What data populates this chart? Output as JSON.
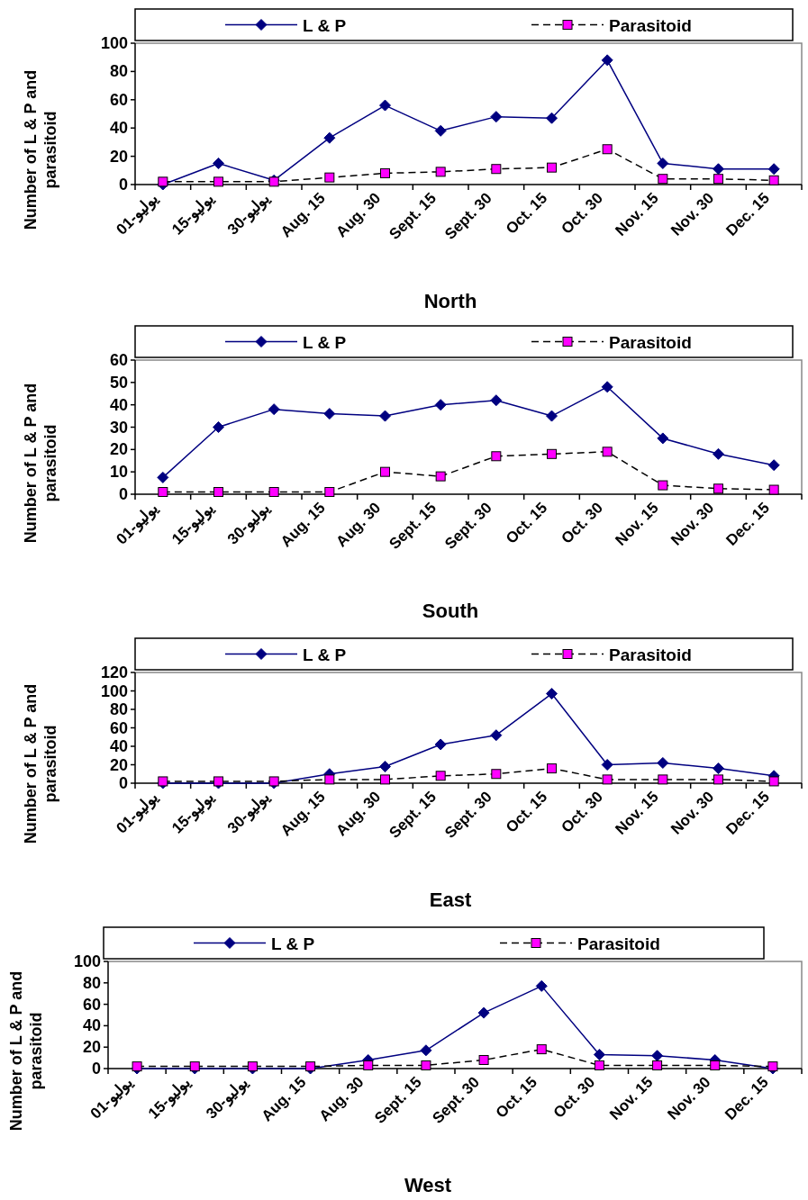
{
  "chart_data": [
    {
      "type": "line",
      "xlabel": "North",
      "ylabel": "Number of L & P and parasitoid",
      "legend": "top",
      "categories": [
        "01-يوليو",
        "15-يوليو",
        "30-يوليو",
        "Aug. 15",
        "Aug. 30",
        "Sept. 15",
        "Sept. 30",
        "Oct. 15",
        "Oct. 30",
        "Nov. 15",
        "Nov. 30",
        "Dec. 15"
      ],
      "ylim": [
        0,
        100
      ],
      "yticks": [
        0,
        20,
        40,
        60,
        80,
        100
      ],
      "series": [
        {
          "name": "L & P",
          "color": "#000080",
          "marker": "diamond",
          "line_style": "solid",
          "values": [
            0,
            15,
            3,
            33,
            56,
            38,
            48,
            47,
            88,
            15,
            11,
            11
          ]
        },
        {
          "name": "Parasitoid",
          "color": "#ff00ff",
          "marker": "square",
          "line_style": "dashed",
          "values": [
            2,
            2,
            2,
            5,
            8,
            9,
            11,
            12,
            25,
            4,
            4,
            3
          ]
        }
      ]
    },
    {
      "type": "line",
      "xlabel": "South",
      "ylabel": "Number of L & P and parasitoid",
      "legend": "top",
      "categories": [
        "01-يوليو",
        "15-يوليو",
        "30-يوليو",
        "Aug. 15",
        "Aug. 30",
        "Sept. 15",
        "Sept. 30",
        "Oct. 15",
        "Oct. 30",
        "Nov. 15",
        "Nov. 30",
        "Dec. 15"
      ],
      "ylim": [
        0,
        60
      ],
      "yticks": [
        0,
        10,
        20,
        30,
        40,
        50,
        60
      ],
      "series": [
        {
          "name": "L & P",
          "color": "#000080",
          "marker": "diamond",
          "line_style": "solid",
          "values": [
            7.5,
            30,
            38,
            36,
            35,
            40,
            42,
            35,
            48,
            25,
            18,
            13
          ]
        },
        {
          "name": "Parasitoid",
          "color": "#ff00ff",
          "marker": "square",
          "line_style": "dashed",
          "values": [
            1,
            1,
            1,
            1,
            10,
            8,
            17,
            18,
            19,
            4,
            2.5,
            2
          ]
        }
      ]
    },
    {
      "type": "line",
      "xlabel": "East",
      "ylabel": "Number of L & P and parasitoid",
      "legend": "top",
      "categories": [
        "01-يوليو",
        "15-يوليو",
        "30-يوليو",
        "Aug. 15",
        "Aug. 30",
        "Sept. 15",
        "Sept. 30",
        "Oct. 15",
        "Oct. 30",
        "Nov. 15",
        "Nov. 30",
        "Dec. 15"
      ],
      "ylim": [
        0,
        120
      ],
      "yticks": [
        0,
        20,
        40,
        60,
        80,
        100,
        120
      ],
      "series": [
        {
          "name": "L & P",
          "color": "#000080",
          "marker": "diamond",
          "line_style": "solid",
          "values": [
            0,
            0,
            0,
            10,
            18,
            42,
            52,
            97,
            20,
            22,
            16,
            8
          ]
        },
        {
          "name": "Parasitoid",
          "color": "#ff00ff",
          "marker": "square",
          "line_style": "dashed",
          "values": [
            2,
            2,
            2,
            4,
            4,
            8,
            10,
            16,
            4,
            4,
            4,
            2
          ]
        }
      ]
    },
    {
      "type": "line",
      "xlabel": "West",
      "ylabel": "Number of L & P and parasitoid",
      "legend": "top",
      "categories": [
        "01-يوليو",
        "15-يوليو",
        "30-يوليو",
        "Aug. 15",
        "Aug. 30",
        "Sept. 15",
        "Sept. 30",
        "Oct. 15",
        "Oct. 30",
        "Nov. 15",
        "Nov. 30",
        "Dec. 15"
      ],
      "ylim": [
        0,
        100
      ],
      "yticks": [
        0,
        20,
        40,
        60,
        80,
        100
      ],
      "series": [
        {
          "name": "L & P",
          "color": "#000080",
          "marker": "diamond",
          "line_style": "solid",
          "values": [
            0,
            0,
            0,
            0,
            8,
            17,
            52,
            77,
            13,
            12,
            8,
            0
          ]
        },
        {
          "name": "Parasitoid",
          "color": "#ff00ff",
          "marker": "square",
          "line_style": "dashed",
          "values": [
            2,
            2,
            2,
            2,
            3,
            3,
            8,
            18,
            3,
            3,
            3,
            2
          ]
        }
      ]
    }
  ]
}
